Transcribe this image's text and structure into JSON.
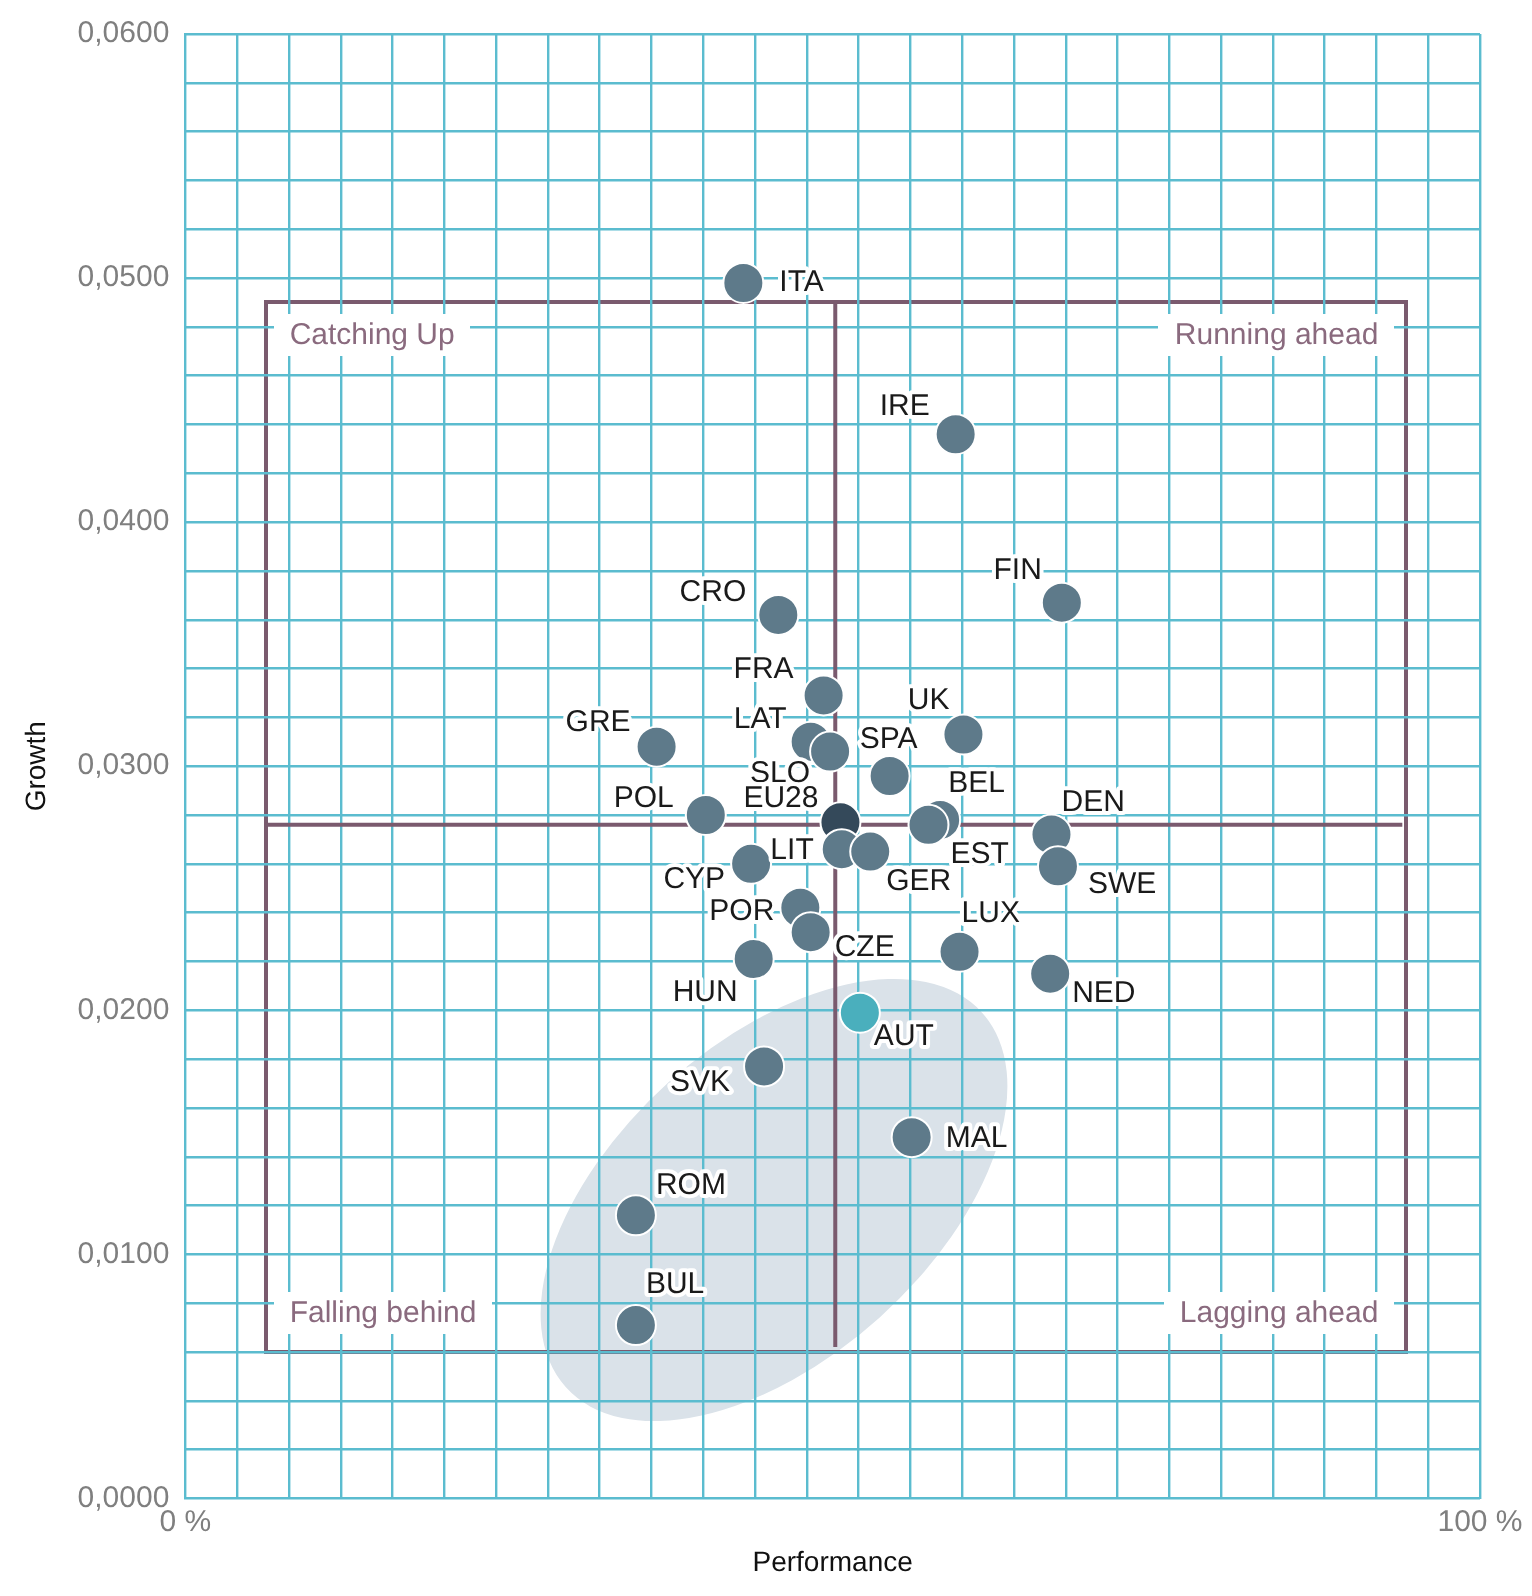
{
  "chart_data": {
    "type": "scatter",
    "xlabel": "Performance",
    "ylabel": "Growth",
    "legend": false,
    "grid": true,
    "marker": "circle",
    "xlim": [
      0,
      100
    ],
    "ylim": [
      0,
      0.06
    ],
    "xticks": [
      {
        "value": 0,
        "label": "0 %"
      },
      {
        "value": 4,
        "label": null
      },
      {
        "value": 8,
        "label": null
      },
      {
        "value": 12,
        "label": null
      },
      {
        "value": 16,
        "label": null
      },
      {
        "value": 20,
        "label": null
      },
      {
        "value": 24,
        "label": null
      },
      {
        "value": 28,
        "label": null
      },
      {
        "value": 32,
        "label": null
      },
      {
        "value": 36,
        "label": null
      },
      {
        "value": 40,
        "label": null
      },
      {
        "value": 44,
        "label": null
      },
      {
        "value": 48,
        "label": null
      },
      {
        "value": 52,
        "label": null
      },
      {
        "value": 56,
        "label": null
      },
      {
        "value": 60,
        "label": null
      },
      {
        "value": 64,
        "label": null
      },
      {
        "value": 68,
        "label": null
      },
      {
        "value": 72,
        "label": null
      },
      {
        "value": 76,
        "label": null
      },
      {
        "value": 80,
        "label": null
      },
      {
        "value": 84,
        "label": null
      },
      {
        "value": 88,
        "label": null
      },
      {
        "value": 92,
        "label": null
      },
      {
        "value": 96,
        "label": null
      },
      {
        "value": 100,
        "label": "100 %"
      }
    ],
    "yticks": [
      {
        "value": 0,
        "label": "0,0000"
      },
      {
        "value": 0.002,
        "label": null
      },
      {
        "value": 0.004,
        "label": null
      },
      {
        "value": 0.006,
        "label": null
      },
      {
        "value": 0.008,
        "label": null
      },
      {
        "value": 0.01,
        "label": "0,0100"
      },
      {
        "value": 0.012,
        "label": null
      },
      {
        "value": 0.014,
        "label": null
      },
      {
        "value": 0.016,
        "label": null
      },
      {
        "value": 0.018,
        "label": null
      },
      {
        "value": 0.02,
        "label": "0,0200"
      },
      {
        "value": 0.022,
        "label": null
      },
      {
        "value": 0.024,
        "label": null
      },
      {
        "value": 0.026,
        "label": null
      },
      {
        "value": 0.028,
        "label": null
      },
      {
        "value": 0.03,
        "label": "0,0300"
      },
      {
        "value": 0.032,
        "label": null
      },
      {
        "value": 0.034,
        "label": null
      },
      {
        "value": 0.036,
        "label": null
      },
      {
        "value": 0.038,
        "label": null
      },
      {
        "value": 0.04,
        "label": "0,0400"
      },
      {
        "value": 0.042,
        "label": null
      },
      {
        "value": 0.044,
        "label": null
      },
      {
        "value": 0.046,
        "label": null
      },
      {
        "value": 0.048,
        "label": null
      },
      {
        "value": 0.05,
        "label": "0,0500"
      },
      {
        "value": 0.052,
        "label": null
      },
      {
        "value": 0.054,
        "label": null
      },
      {
        "value": 0.056,
        "label": null
      },
      {
        "value": 0.058,
        "label": null
      },
      {
        "value": 0.06,
        "label": "0,0600"
      }
    ],
    "ref_lines": [
      {
        "axis": "x",
        "value": 50.2,
        "color": "#7a5a6e"
      },
      {
        "axis": "y",
        "value": 0.0276,
        "color": "#7a5a6e"
      }
    ],
    "annotations": [
      "Catching Up",
      "Running ahead",
      "Falling behind",
      "Lagging ahead"
    ],
    "series": [
      {
        "name": "ITA",
        "color": "#5e7a8a",
        "x": [
          43.1
        ],
        "values": [
          0.0498
        ]
      },
      {
        "name": "IRE",
        "color": "#5e7a8a",
        "x": [
          59.5
        ],
        "values": [
          0.0436
        ]
      },
      {
        "name": "FIN",
        "color": "#5e7a8a",
        "x": [
          67.7
        ],
        "values": [
          0.0367
        ]
      },
      {
        "name": "CRO",
        "color": "#5e7a8a",
        "x": [
          45.8
        ],
        "values": [
          0.0362
        ]
      },
      {
        "name": "FRA",
        "color": "#5e7a8a",
        "x": [
          49.3
        ],
        "values": [
          0.0329
        ]
      },
      {
        "name": "UK",
        "color": "#5e7a8a",
        "x": [
          60.1
        ],
        "values": [
          0.0313
        ]
      },
      {
        "name": "GRE",
        "color": "#5e7a8a",
        "x": [
          36.4
        ],
        "values": [
          0.0308
        ]
      },
      {
        "name": "LAT",
        "color": "#5e7a8a",
        "x": [
          48.3
        ],
        "values": [
          0.031
        ]
      },
      {
        "name": "SLO",
        "color": "#5e7a8a",
        "x": [
          49.8
        ],
        "values": [
          0.0306
        ]
      },
      {
        "name": "SPA",
        "color": "#5e7a8a",
        "x": [
          54.4
        ],
        "values": [
          0.0296
        ]
      },
      {
        "name": "POL",
        "color": "#5e7a8a",
        "x": [
          40.2
        ],
        "values": [
          0.028
        ]
      },
      {
        "name": "EU28",
        "color": "#34495a",
        "x": [
          50.6
        ],
        "values": [
          0.0277
        ]
      },
      {
        "name": "BEL",
        "color": "#5e7a8a",
        "x": [
          58.3
        ],
        "values": [
          0.0278
        ]
      },
      {
        "name": "EST",
        "color": "#5e7a8a",
        "x": [
          57.4
        ],
        "values": [
          0.0276
        ]
      },
      {
        "name": "DEN",
        "color": "#5e7a8a",
        "x": [
          66.9
        ],
        "values": [
          0.0272
        ]
      },
      {
        "name": "LIT",
        "color": "#5e7a8a",
        "x": [
          50.7
        ],
        "values": [
          0.0266
        ]
      },
      {
        "name": "GER",
        "color": "#5e7a8a",
        "x": [
          52.9
        ],
        "values": [
          0.0265
        ]
      },
      {
        "name": "CYP",
        "color": "#5e7a8a",
        "x": [
          43.7
        ],
        "values": [
          0.026
        ]
      },
      {
        "name": "SWE",
        "color": "#5e7a8a",
        "x": [
          67.4
        ],
        "values": [
          0.0259
        ]
      },
      {
        "name": "POR",
        "color": "#5e7a8a",
        "x": [
          47.5
        ],
        "values": [
          0.0242
        ]
      },
      {
        "name": "CZE",
        "color": "#5e7a8a",
        "x": [
          48.3
        ],
        "values": [
          0.0232
        ]
      },
      {
        "name": "LUX",
        "color": "#5e7a8a",
        "x": [
          59.8
        ],
        "values": [
          0.0224
        ]
      },
      {
        "name": "HUN",
        "color": "#5e7a8a",
        "x": [
          43.9
        ],
        "values": [
          0.0221
        ]
      },
      {
        "name": "NED",
        "color": "#5e7a8a",
        "x": [
          66.8
        ],
        "values": [
          0.0215
        ]
      },
      {
        "name": "AUT",
        "color": "#4aafbd",
        "x": [
          52.1
        ],
        "values": [
          0.0199
        ]
      },
      {
        "name": "SVK",
        "color": "#5e7a8a",
        "x": [
          44.7
        ],
        "values": [
          0.0177
        ]
      },
      {
        "name": "MAL",
        "color": "#5e7a8a",
        "x": [
          56.1
        ],
        "values": [
          0.0148
        ]
      },
      {
        "name": "ROM",
        "color": "#5e7a8a",
        "x": [
          34.8
        ],
        "values": [
          0.0116
        ]
      },
      {
        "name": "BUL",
        "color": "#5e7a8a",
        "x": [
          34.8
        ],
        "values": [
          0.0071
        ]
      }
    ]
  }
}
